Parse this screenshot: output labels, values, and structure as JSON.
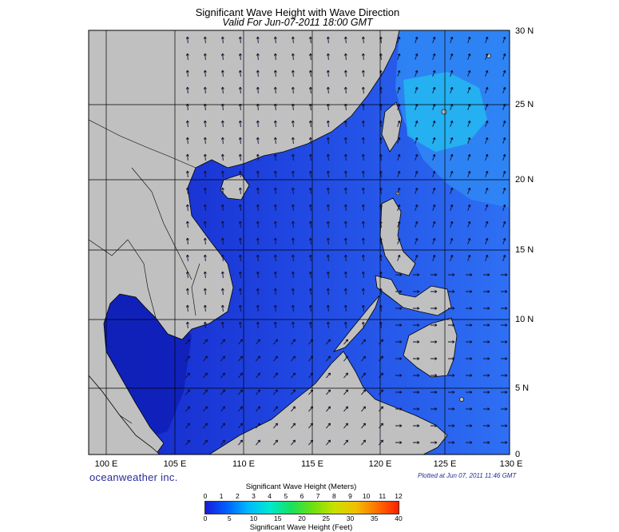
{
  "title": "Significant Wave Height with Wave Direction",
  "subtitle": "Valid For Jun-07-2011 18:00 GMT",
  "x_ticks": [
    "100 E",
    "105 E",
    "110 E",
    "115 E",
    "120 E",
    "125 E",
    "130 E"
  ],
  "y_ticks": [
    "30 N",
    "25 N",
    "20 N",
    "15 N",
    "10 N",
    "5 N",
    "0"
  ],
  "brand": "oceanweather inc.",
  "plotted": "Plotted at Jun 07, 2011 11:46 GMT",
  "legend": {
    "meters_title": "Significant Wave Height (Meters)",
    "meters_ticks": [
      "0",
      "1",
      "2",
      "3",
      "4",
      "5",
      "6",
      "7",
      "8",
      "9",
      "10",
      "11",
      "12"
    ],
    "feet_title": "Significant Wave Height (Feet)",
    "feet_ticks": [
      "0",
      "5",
      "10",
      "15",
      "20",
      "25",
      "30",
      "35",
      "40"
    ],
    "colors": [
      "#1a1ad8",
      "#0060ff",
      "#00b8ff",
      "#00e8d0",
      "#18e060",
      "#6ee010",
      "#c8e000",
      "#f0c000",
      "#ff7000",
      "#ff2000"
    ]
  },
  "colors": {
    "land": "#c0c0c0",
    "ocean_low": "#1a2ed8",
    "ocean_mid": "#2a60f0",
    "ocean_high": "#00a8f0",
    "arrow": "#101030"
  }
}
